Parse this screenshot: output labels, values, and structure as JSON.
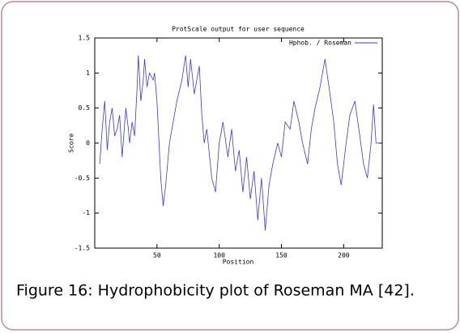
{
  "chart_data": {
    "type": "line",
    "title": "ProtScale output for user sequence",
    "xlabel": "Position",
    "ylabel": "Score",
    "caption": "Figure 16: Hydrophobicity plot of Roseman MA [42].",
    "x": [
      4,
      6,
      8,
      10,
      12,
      14,
      16,
      18,
      20,
      22,
      25,
      27,
      28,
      30,
      32,
      34,
      35,
      37,
      39,
      40,
      42,
      44,
      47,
      48,
      50,
      53,
      55,
      57,
      60,
      63,
      66,
      70,
      73,
      75,
      77,
      80,
      84,
      86,
      88,
      90,
      94,
      97,
      100,
      103,
      107,
      110,
      113,
      116,
      119,
      122,
      125,
      128,
      131,
      134,
      137,
      140,
      143,
      147,
      150,
      153,
      157,
      160,
      164,
      167,
      171,
      174,
      177,
      181,
      185,
      189,
      192,
      195,
      198,
      202,
      205,
      209,
      213,
      216,
      219,
      222,
      224,
      226,
      229
    ],
    "series": [
      {
        "name": "Hphob. / Roseman",
        "color": "#3a3ad0",
        "values": [
          -0.3,
          0.2,
          0.6,
          -0.1,
          0.3,
          0.5,
          0.1,
          0.2,
          0.4,
          -0.2,
          0.5,
          0.2,
          0.0,
          0.3,
          0.1,
          0.8,
          1.25,
          0.6,
          0.9,
          1.2,
          0.8,
          1.0,
          0.9,
          1.0,
          0.6,
          -0.5,
          -0.9,
          -0.6,
          0.0,
          0.3,
          0.6,
          0.9,
          1.25,
          0.8,
          1.2,
          0.7,
          1.1,
          0.4,
          0.0,
          0.2,
          -0.5,
          -0.7,
          0.0,
          0.3,
          -0.2,
          0.2,
          -0.4,
          -0.1,
          -0.7,
          -0.2,
          -0.8,
          -0.4,
          -1.1,
          -0.5,
          -1.25,
          -0.6,
          -0.3,
          0.0,
          -0.2,
          0.3,
          0.2,
          0.6,
          0.3,
          0.0,
          -0.3,
          0.2,
          0.5,
          0.8,
          1.2,
          0.7,
          0.3,
          -0.3,
          -0.6,
          0.0,
          0.4,
          0.6,
          0.1,
          -0.3,
          -0.5,
          0.0,
          0.55,
          0.0,
          0.0
        ]
      }
    ],
    "xlim": [
      0,
      231
    ],
    "ylim": [
      -1.5,
      1.5
    ],
    "xticks": [
      50,
      100,
      150,
      200
    ],
    "yticks": [
      -1.5,
      -1,
      -0.5,
      0,
      0.5,
      1,
      1.5
    ],
    "legend": "top-right"
  }
}
